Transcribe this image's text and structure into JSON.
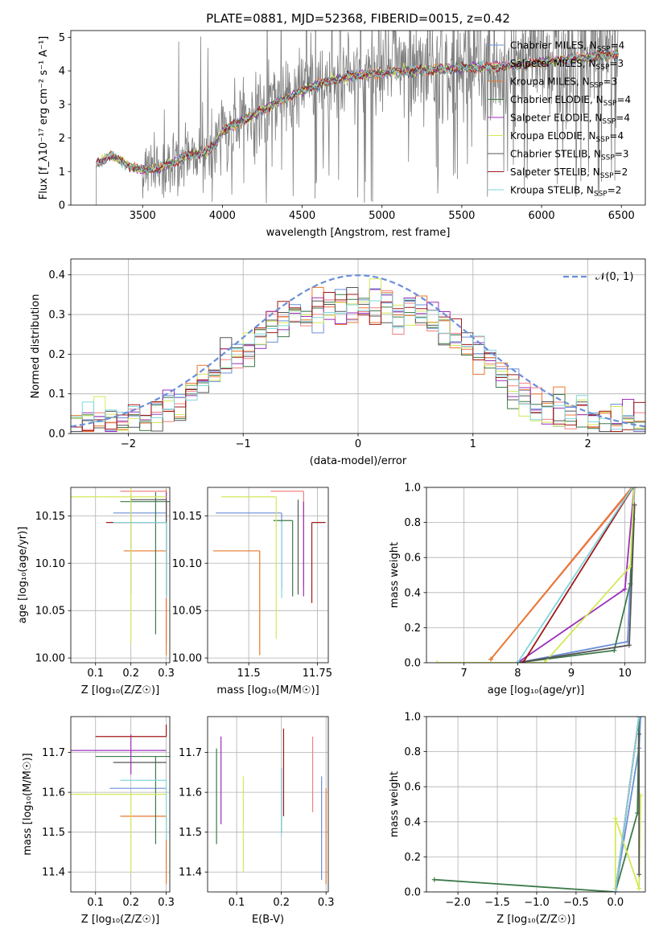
{
  "figure": {
    "title": "PLATE=0881, MJD=52368, FIBERID=0015, z=0.42"
  },
  "palette": {
    "ChMI": "#6b8fd9",
    "SaMI": "#f08080",
    "KrMI": "#e8772e",
    "ChEL": "#3d7a4a",
    "SaEL": "#9a2fb8",
    "KrEL": "#d4e85a",
    "ChST": "#555555",
    "SaST": "#a01818",
    "KrST": "#80d6de",
    "normal": "#6b8fd9"
  },
  "models": [
    {
      "key": "ChMI",
      "name": "Chabrier MILES",
      "nssp": "4"
    },
    {
      "key": "SaMI",
      "name": "Salpeter MILES",
      "nssp": "3"
    },
    {
      "key": "KrMI",
      "name": "Kroupa MILES",
      "nssp": "3"
    },
    {
      "key": "ChEL",
      "name": "Chabrier ELODIE",
      "nssp": "4"
    },
    {
      "key": "SaEL",
      "name": "Salpeter ELODIE",
      "nssp": "4"
    },
    {
      "key": "KrEL",
      "name": "Kroupa ELODIE",
      "nssp": "4"
    },
    {
      "key": "ChST",
      "name": "Chabrier STELIB",
      "nssp": "3"
    },
    {
      "key": "SaST",
      "name": "Salpeter STELIB",
      "nssp": "2"
    },
    {
      "key": "KrST",
      "name": "Kroupa STELIB",
      "nssp": "2"
    }
  ],
  "chart_data": [
    {
      "id": "spectrum",
      "type": "line",
      "xlabel": "wavelength [Angstrom, rest frame]",
      "ylabel": "Flux [f_λ10⁻¹⁷ erg cm⁻² s⁻¹ A⁻¹]",
      "xlim": [
        3050,
        6650
      ],
      "ylim": [
        0,
        5.2
      ],
      "xticks": [
        3500,
        4000,
        4500,
        5000,
        5500,
        6000,
        6500
      ],
      "yticks": [
        0,
        1,
        2,
        3,
        4,
        5
      ],
      "legend_position": "top-right",
      "observed": {
        "x_start": 3210,
        "x_end": 6480,
        "noisy_from": 3500
      },
      "continuum_knots": [
        [
          3210,
          1.2
        ],
        [
          3300,
          1.5
        ],
        [
          3400,
          1.2
        ],
        [
          3500,
          1.05
        ],
        [
          3600,
          1.1
        ],
        [
          3700,
          1.3
        ],
        [
          3800,
          1.5
        ],
        [
          3900,
          1.6
        ],
        [
          3950,
          1.75
        ],
        [
          4000,
          2.2
        ],
        [
          4200,
          2.7
        ],
        [
          4400,
          3.2
        ],
        [
          4600,
          3.6
        ],
        [
          4800,
          3.85
        ],
        [
          5000,
          3.95
        ],
        [
          5200,
          4.0
        ],
        [
          5400,
          4.05
        ],
        [
          5600,
          4.1
        ],
        [
          5800,
          4.15
        ],
        [
          6000,
          4.25
        ],
        [
          6200,
          4.35
        ],
        [
          6480,
          4.5
        ]
      ]
    },
    {
      "id": "residuals",
      "type": "histogram",
      "xlabel": "(data-model)/error",
      "ylabel": "Normed distribution",
      "xlim": [
        -2.5,
        2.5
      ],
      "ylim": [
        0,
        0.44
      ],
      "xticks": [
        -2,
        -1,
        0,
        1,
        2
      ],
      "yticks": [
        0.0,
        0.1,
        0.2,
        0.3,
        0.4
      ],
      "bin_width": 0.1,
      "reference_curve": "N(0,1)",
      "legend_label": "𝒩(0, 1)",
      "legend_position": "top-right",
      "ramp_peak": 0.32,
      "ramp_tail": 0.03
    },
    {
      "id": "age_vs_Z",
      "type": "errorbar",
      "xlabel": "Z [log₁₀(Z/Z☉)]",
      "ylabel": "age  [log₁₀(age/yr)]",
      "xlim": [
        0.03,
        0.31
      ],
      "ylim": [
        9.995,
        10.18
      ],
      "xticks": [
        0.1,
        0.2,
        0.3
      ],
      "yticks": [
        10.0,
        10.05,
        10.1,
        10.15
      ],
      "points": [
        {
          "m": "ChMI",
          "x": 0.2,
          "y": 10.153,
          "xe": [
            0.05,
            0.1
          ],
          "ye": [
            0.085,
            0.02
          ]
        },
        {
          "m": "SaMI",
          "x": 0.3,
          "y": 10.176,
          "xe": [
            0.13,
            0.0
          ],
          "ye": [
            0.16,
            0.0
          ]
        },
        {
          "m": "KrMI",
          "x": 0.3,
          "y": 10.113,
          "xe": [
            0.12,
            0.0
          ],
          "ye": [
            0.11,
            0.065
          ]
        },
        {
          "m": "ChEL",
          "x": 0.27,
          "y": 10.165,
          "xe": [
            0.1,
            0.04
          ],
          "ye": [
            0.14,
            0.01
          ]
        },
        {
          "m": "SaEL",
          "x": 0.3,
          "y": 10.165,
          "xe": [
            0.0,
            0.0
          ],
          "ye": [
            0.1,
            0.01
          ]
        },
        {
          "m": "KrEL",
          "x": 0.2,
          "y": 10.17,
          "xe": [
            0.17,
            0.1
          ],
          "ye": [
            0.155,
            0.01
          ]
        },
        {
          "m": "ChST",
          "x": 0.3,
          "y": 10.167,
          "xe": [
            0.1,
            0.0
          ],
          "ye": [
            0.1,
            0.0
          ]
        },
        {
          "m": "SaST",
          "x": 0.15,
          "y": 10.143,
          "xe": [
            0.02,
            0.15
          ],
          "ye": [
            0.0,
            0.0
          ]
        },
        {
          "m": "KrST",
          "x": 0.3,
          "y": 10.143,
          "xe": [
            0.15,
            0.0
          ],
          "ye": [
            0.08,
            0.0
          ]
        }
      ]
    },
    {
      "id": "age_vs_mass",
      "type": "errorbar",
      "xlabel": "mass [log₁₀(M/M☉)]",
      "ylabel": "",
      "xlim": [
        11.35,
        11.79
      ],
      "ylim": [
        9.995,
        10.18
      ],
      "xticks": [
        11.5,
        11.75
      ],
      "yticks": [
        10.0,
        10.05,
        10.1,
        10.15
      ],
      "points": [
        {
          "m": "ChMI",
          "x": 11.62,
          "y": 10.153,
          "xe": [
            0.24,
            0.0
          ],
          "ye": [
            0.08,
            0.0
          ]
        },
        {
          "m": "SaMI",
          "x": 11.7,
          "y": 10.176,
          "xe": [
            0.12,
            0.0
          ],
          "ye": [
            0.1,
            0.0
          ]
        },
        {
          "m": "KrMI",
          "x": 11.54,
          "y": 10.113,
          "xe": [
            0.17,
            0.0
          ],
          "ye": [
            0.11,
            0.0
          ]
        },
        {
          "m": "ChEL",
          "x": 11.66,
          "y": 10.145,
          "xe": [
            0.07,
            0.0
          ],
          "ye": [
            0.08,
            0.0
          ]
        },
        {
          "m": "SaEL",
          "x": 11.7,
          "y": 10.165,
          "xe": [
            0.0,
            0.0
          ],
          "ye": [
            0.1,
            0.0
          ]
        },
        {
          "m": "KrEL",
          "x": 11.6,
          "y": 10.17,
          "xe": [
            0.2,
            0.0
          ],
          "ye": [
            0.15,
            0.0
          ]
        },
        {
          "m": "ChST",
          "x": 11.68,
          "y": 10.167,
          "xe": [
            0.0,
            0.0
          ],
          "ye": [
            0.1,
            0.0
          ]
        },
        {
          "m": "SaST",
          "x": 11.73,
          "y": 10.143,
          "xe": [
            0.0,
            0.05
          ],
          "ye": [
            0.085,
            0.0
          ]
        },
        {
          "m": "KrST",
          "x": 11.62,
          "y": 10.143,
          "xe": [
            0.0,
            0.0
          ],
          "ye": [
            0.08,
            0.0
          ]
        }
      ]
    },
    {
      "id": "weight_vs_age",
      "type": "line",
      "xlabel": "age  [log₁₀(age/yr)]",
      "ylabel": "mass weight",
      "xlim": [
        6.3,
        10.38
      ],
      "ylim": [
        0,
        1.0
      ],
      "xticks": [
        7,
        8,
        9,
        10
      ],
      "yticks": [
        0.0,
        0.2,
        0.4,
        0.6,
        0.8,
        1.0
      ],
      "series": [
        {
          "m": "ChMI",
          "points": [
            [
              8.0,
              0.0
            ],
            [
              10.05,
              0.12
            ],
            [
              10.15,
              0.82
            ],
            [
              10.18,
              1.0
            ]
          ]
        },
        {
          "m": "SaMI",
          "points": [
            [
              7.5,
              0.02
            ],
            [
              10.15,
              1.0
            ]
          ]
        },
        {
          "m": "KrMI",
          "points": [
            [
              7.5,
              0.02
            ],
            [
              10.13,
              1.0
            ]
          ]
        },
        {
          "m": "ChEL",
          "points": [
            [
              8.0,
              0.0
            ],
            [
              9.8,
              0.07
            ],
            [
              10.1,
              0.45
            ],
            [
              10.17,
              1.0
            ]
          ]
        },
        {
          "m": "SaEL",
          "points": [
            [
              8.0,
              0.0
            ],
            [
              10.0,
              0.42
            ],
            [
              10.17,
              1.0
            ]
          ]
        },
        {
          "m": "KrEL",
          "points": [
            [
              6.5,
              0.0
            ],
            [
              8.5,
              0.0
            ],
            [
              10.1,
              0.55
            ],
            [
              10.17,
              1.0
            ]
          ]
        },
        {
          "m": "ChST",
          "points": [
            [
              8.0,
              0.0
            ],
            [
              10.08,
              0.1
            ],
            [
              10.18,
              0.9
            ]
          ]
        },
        {
          "m": "SaST",
          "points": [
            [
              8.1,
              0.0
            ],
            [
              10.15,
              1.0
            ]
          ]
        },
        {
          "m": "KrST",
          "points": [
            [
              8.0,
              0.0
            ],
            [
              10.14,
              1.0
            ]
          ]
        }
      ]
    },
    {
      "id": "mass_vs_Z",
      "type": "errorbar",
      "xlabel": "Z [log₁₀(Z/Z☉)]",
      "ylabel": "mass [log₁₀(M/M☉)]",
      "xlim": [
        0.03,
        0.31
      ],
      "ylim": [
        11.35,
        11.79
      ],
      "xticks": [
        0.1,
        0.2,
        0.3
      ],
      "yticks": [
        11.4,
        11.5,
        11.6,
        11.7
      ],
      "points": [
        {
          "m": "ChMI",
          "x": 0.3,
          "y": 11.61,
          "xe": [
            0.16,
            0.0
          ],
          "ye": [
            0.0,
            0.0
          ]
        },
        {
          "m": "SaMI",
          "x": 0.3,
          "y": 11.7,
          "xe": [
            0.0,
            0.0
          ],
          "ye": [
            0.0,
            0.0
          ]
        },
        {
          "m": "KrMI",
          "x": 0.3,
          "y": 11.54,
          "xe": [
            0.13,
            0.0
          ],
          "ye": [
            0.17,
            0.0
          ]
        },
        {
          "m": "ChEL",
          "x": 0.27,
          "y": 11.69,
          "xe": [
            0.17,
            0.04
          ],
          "ye": [
            0.22,
            0.0
          ]
        },
        {
          "m": "SaEL",
          "x": 0.2,
          "y": 11.705,
          "xe": [
            0.17,
            0.1
          ],
          "ye": [
            0.06,
            0.04
          ]
        },
        {
          "m": "KrEL",
          "x": 0.2,
          "y": 11.595,
          "xe": [
            0.17,
            0.1
          ],
          "ye": [
            0.2,
            0.0
          ]
        },
        {
          "m": "ChST",
          "x": 0.3,
          "y": 11.675,
          "xe": [
            0.15,
            0.0
          ],
          "ye": [
            0.0,
            0.0
          ]
        },
        {
          "m": "SaST",
          "x": 0.3,
          "y": 11.74,
          "xe": [
            0.2,
            0.0
          ],
          "ye": [
            0.0,
            0.03
          ]
        },
        {
          "m": "KrST",
          "x": 0.3,
          "y": 11.63,
          "xe": [
            0.13,
            0.0
          ],
          "ye": [
            0.15,
            0.0
          ]
        }
      ]
    },
    {
      "id": "mass_vs_ebv",
      "type": "errorbar",
      "xlabel": "E(B-V)",
      "ylabel": "",
      "xlim": [
        0.035,
        0.305
      ],
      "ylim": [
        11.35,
        11.79
      ],
      "xticks": [
        0.1,
        0.2,
        0.3
      ],
      "yticks": [
        11.4,
        11.5,
        11.6,
        11.7
      ],
      "points": [
        {
          "m": "ChMI",
          "x": 0.29,
          "y": 11.6,
          "xe": [
            0.0,
            0.0
          ],
          "ye": [
            0.22,
            0.04
          ]
        },
        {
          "m": "SaMI",
          "x": 0.27,
          "y": 11.64,
          "xe": [
            0.0,
            0.0
          ],
          "ye": [
            0.09,
            0.1
          ]
        },
        {
          "m": "KrMI",
          "x": 0.3,
          "y": 11.5,
          "xe": [
            0.0,
            0.0
          ],
          "ye": [
            0.13,
            0.11
          ]
        },
        {
          "m": "ChEL",
          "x": 0.055,
          "y": 11.59,
          "xe": [
            0.0,
            0.0
          ],
          "ye": [
            0.12,
            0.12
          ]
        },
        {
          "m": "SaEL",
          "x": 0.065,
          "y": 11.63,
          "xe": [
            0.0,
            0.0
          ],
          "ye": [
            0.11,
            0.11
          ]
        },
        {
          "m": "KrEL",
          "x": 0.115,
          "y": 11.52,
          "xe": [
            0.0,
            0.0
          ],
          "ye": [
            0.12,
            0.12
          ]
        },
        {
          "m": "ChST",
          "x": 0.2,
          "y": 11.6,
          "xe": [
            0.0,
            0.0
          ],
          "ye": [
            0.1,
            0.06
          ]
        },
        {
          "m": "SaST",
          "x": 0.205,
          "y": 11.65,
          "xe": [
            0.0,
            0.0
          ],
          "ye": [
            0.11,
            0.11
          ]
        },
        {
          "m": "KrST",
          "x": 0.2,
          "y": 11.58,
          "xe": [
            0.0,
            0.0
          ],
          "ye": [
            0.09,
            0.08
          ]
        }
      ]
    },
    {
      "id": "weight_vs_Z",
      "type": "line",
      "xlabel": "Z [log₁₀(Z/Z☉)]",
      "ylabel": "mass weight",
      "xlim": [
        -2.4,
        0.38
      ],
      "ylim": [
        0,
        1.0
      ],
      "xticks": [
        -2.0,
        -1.5,
        -1.0,
        -0.5,
        0.0
      ],
      "yticks": [
        0.0,
        0.2,
        0.4,
        0.6,
        0.8,
        1.0
      ],
      "series": [
        {
          "m": "ChMI",
          "points": [
            [
              0.0,
              0.0
            ],
            [
              0.3,
              0.82
            ],
            [
              0.32,
              1.0
            ]
          ]
        },
        {
          "m": "SaMI",
          "points": [
            [
              0.0,
              0.0
            ],
            [
              0.3,
              1.0
            ]
          ]
        },
        {
          "m": "KrMI",
          "points": [
            [
              0.0,
              0.0
            ],
            [
              0.3,
              1.0
            ]
          ]
        },
        {
          "m": "ChEL",
          "points": [
            [
              -2.3,
              0.07
            ],
            [
              0.0,
              0.0
            ],
            [
              0.28,
              0.45
            ],
            [
              0.3,
              1.0
            ]
          ]
        },
        {
          "m": "SaEL",
          "points": [
            [
              0.0,
              0.0
            ],
            [
              0.3,
              1.0
            ]
          ]
        },
        {
          "m": "KrEL",
          "points": [
            [
              0.0,
              0.02
            ],
            [
              0.0,
              0.42
            ],
            [
              0.3,
              0.02
            ],
            [
              0.32,
              0.55
            ]
          ]
        },
        {
          "m": "ChST",
          "points": [
            [
              0.3,
              0.1
            ],
            [
              0.3,
              0.9
            ]
          ]
        },
        {
          "m": "SaST",
          "points": [
            [
              0.0,
              0.0
            ],
            [
              0.3,
              1.0
            ]
          ]
        },
        {
          "m": "KrST",
          "points": [
            [
              0.0,
              0.0
            ],
            [
              0.3,
              1.0
            ]
          ]
        }
      ]
    }
  ]
}
